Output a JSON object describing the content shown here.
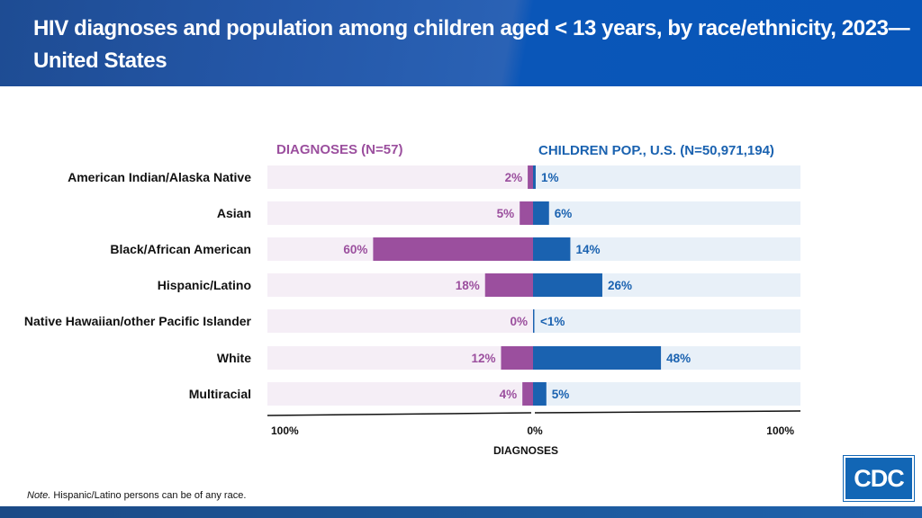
{
  "header": {
    "title": "HIV diagnoses and population among children aged < 13 years, by race/ethnicity, 2023—United States"
  },
  "note": {
    "label": "Note.",
    "text": " Hispanic/Latino persons can be of any race."
  },
  "logo": "CDC",
  "chart_data": {
    "type": "bar",
    "orientation": "horizontal-diverging",
    "categories": [
      "American Indian/Alaska Native",
      "Asian",
      "Black/African American",
      "Hispanic/Latino",
      "Native Hawaiian/other Pacific Islander",
      "White",
      "Multiracial"
    ],
    "series": [
      {
        "name": "DIAGNOSES (N=57)",
        "side": "left",
        "color": "#9b4f9e",
        "values": [
          2,
          5,
          60,
          18,
          0,
          12,
          4
        ],
        "labels": [
          "2%",
          "5%",
          "60%",
          "18%",
          "0%",
          "12%",
          "4%"
        ]
      },
      {
        "name": "CHILDREN POP., U.S. (N=50,971,194)",
        "side": "right",
        "color": "#1a62b0",
        "values": [
          1,
          6,
          14,
          26,
          0.5,
          48,
          5
        ],
        "labels": [
          "1%",
          "6%",
          "14%",
          "26%",
          "<1%",
          "48%",
          "5%"
        ]
      }
    ],
    "xlim": [
      0,
      100
    ],
    "ticks": [
      "100%",
      "0%",
      "100%"
    ],
    "xlabel": "DIAGNOSES",
    "background_colors": {
      "left": "#f5eef6",
      "right": "#e8f0f8"
    }
  }
}
